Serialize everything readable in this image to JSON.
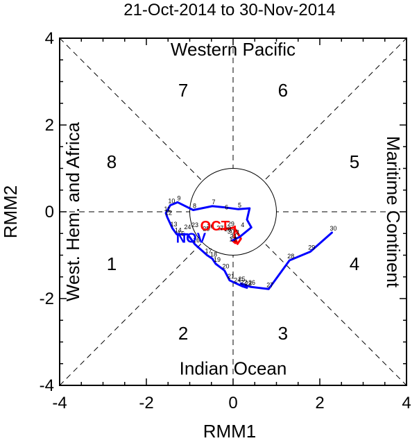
{
  "chart_data": {
    "type": "line",
    "title": "21-Oct-2014 to 30-Nov-2014",
    "xlabel": "RMM1",
    "ylabel": "RMM2",
    "xlim": [
      -4,
      4
    ],
    "ylim": [
      -4,
      4
    ],
    "xticks": [
      "-4",
      "-2",
      "0",
      "2",
      "4"
    ],
    "yticks": [
      "-4",
      "-2",
      "0",
      "2",
      "4"
    ],
    "regions": {
      "top": "Western Pacific",
      "bottom": "Indian Ocean",
      "left": "West. Hem. and Africa",
      "right": "Maritime Continent"
    },
    "phases": [
      {
        "label": "1",
        "x": -2.8,
        "y": -1.2
      },
      {
        "label": "2",
        "x": -1.15,
        "y": -2.8
      },
      {
        "label": "3",
        "x": 1.15,
        "y": -2.8
      },
      {
        "label": "4",
        "x": 2.8,
        "y": -1.2
      },
      {
        "label": "5",
        "x": 2.8,
        "y": 1.15
      },
      {
        "label": "6",
        "x": 1.15,
        "y": 2.8
      },
      {
        "label": "7",
        "x": -1.15,
        "y": 2.8
      },
      {
        "label": "8",
        "x": -2.8,
        "y": 1.15
      }
    ],
    "month_labels": [
      {
        "text": "OCT",
        "color": "#ff0000",
        "x": -0.42,
        "y": -0.32
      },
      {
        "text": "NOV",
        "color": "#0000ff",
        "x": -0.97,
        "y": -0.6
      }
    ],
    "series": [
      {
        "color": "#ff0000",
        "points": [
          {
            "x": -0.28,
            "y": -0.4,
            "label": ""
          },
          {
            "x": -0.1,
            "y": -0.39,
            "label": ""
          },
          {
            "x": 0.02,
            "y": -0.36,
            "label": ""
          },
          {
            "x": 0.1,
            "y": -0.48,
            "label": ""
          },
          {
            "x": 0.18,
            "y": -0.62,
            "label": ""
          },
          {
            "x": 0.1,
            "y": -0.74,
            "label": ""
          },
          {
            "x": 0.03,
            "y": -0.56,
            "label": ""
          },
          {
            "x": 0.04,
            "y": -0.34,
            "label": ""
          },
          {
            "x": 0.03,
            "y": -0.56,
            "label": ""
          },
          {
            "x": 0.05,
            "y": -0.72,
            "label": ""
          },
          {
            "x": -0.02,
            "y": -0.66,
            "label": ""
          }
        ]
      },
      {
        "color": "#0000ff",
        "points": [
          {
            "x": -0.02,
            "y": -0.66,
            "label": "31"
          },
          {
            "x": 0.15,
            "y": -0.58,
            "label": ""
          },
          {
            "x": 0.42,
            "y": -0.36,
            "label": ""
          },
          {
            "x": 0.32,
            "y": -0.18,
            "label": ""
          },
          {
            "x": 0.38,
            "y": 0.08,
            "label": ""
          },
          {
            "x": 0.12,
            "y": 0.06,
            "label": "5"
          },
          {
            "x": -0.18,
            "y": 0.1,
            "label": ""
          },
          {
            "x": -0.48,
            "y": 0.13,
            "label": "7"
          },
          {
            "x": -0.92,
            "y": 0.04,
            "label": "8"
          },
          {
            "x": -1.28,
            "y": 0.22,
            "label": "9"
          },
          {
            "x": -1.45,
            "y": 0.15,
            "label": "10"
          },
          {
            "x": -1.55,
            "y": -0.03,
            "label": "11"
          },
          {
            "x": -1.52,
            "y": -0.12,
            "label": "12"
          },
          {
            "x": -1.4,
            "y": -0.38,
            "label": "13"
          },
          {
            "x": -1.3,
            "y": -0.52,
            "label": "14"
          },
          {
            "x": -1.05,
            "y": -0.52,
            "label": ""
          },
          {
            "x": -0.88,
            "y": -0.75,
            "label": "16"
          },
          {
            "x": -0.6,
            "y": -1.0,
            "label": "17"
          },
          {
            "x": -0.48,
            "y": -1.08,
            "label": "18"
          },
          {
            "x": -0.4,
            "y": -1.2,
            "label": "19"
          },
          {
            "x": -0.2,
            "y": -1.35,
            "label": "20"
          },
          {
            "x": -0.08,
            "y": -1.58,
            "label": "21"
          },
          {
            "x": 0.22,
            "y": -1.72,
            "label": "22"
          },
          {
            "x": 0.32,
            "y": -1.75,
            "label": "23"
          },
          {
            "x": 0.18,
            "y": -1.65,
            "label": ""
          },
          {
            "x": 0.4,
            "y": -1.73,
            "label": "26"
          },
          {
            "x": 0.82,
            "y": -1.78,
            "label": "27"
          },
          {
            "x": 1.3,
            "y": -1.12,
            "label": "28"
          },
          {
            "x": 1.78,
            "y": -0.92,
            "label": "29"
          },
          {
            "x": 2.28,
            "y": -0.48,
            "label": "30"
          }
        ]
      }
    ]
  },
  "extra_day_labels": [
    {
      "text": "15",
      "x": -1.2,
      "y": -0.55
    },
    {
      "text": "24",
      "x": 0.1,
      "y": -1.62
    },
    {
      "text": "25",
      "x": 0.2,
      "y": -1.6
    },
    {
      "text": "23",
      "x": -0.88,
      "y": -0.35
    },
    {
      "text": "24",
      "x": -1.05,
      "y": -0.4
    },
    {
      "text": "25",
      "x": -0.62,
      "y": -0.44
    },
    {
      "text": "26",
      "x": -0.52,
      "y": -0.38
    },
    {
      "text": "27",
      "x": -0.3,
      "y": -0.42
    },
    {
      "text": "28",
      "x": -0.12,
      "y": -0.45
    },
    {
      "text": "29",
      "x": -0.05,
      "y": -0.33
    },
    {
      "text": "30",
      "x": -0.05,
      "y": -0.5
    },
    {
      "text": "6",
      "x": -0.15,
      "y": 0.06
    },
    {
      "text": "4",
      "x": 0.22,
      "y": -0.35
    },
    {
      "text": "3",
      "x": 0.1,
      "y": -0.52
    },
    {
      "text": "2",
      "x": 0.05,
      "y": -0.68
    },
    {
      "text": "1",
      "x": -0.05,
      "y": -0.68
    }
  ]
}
